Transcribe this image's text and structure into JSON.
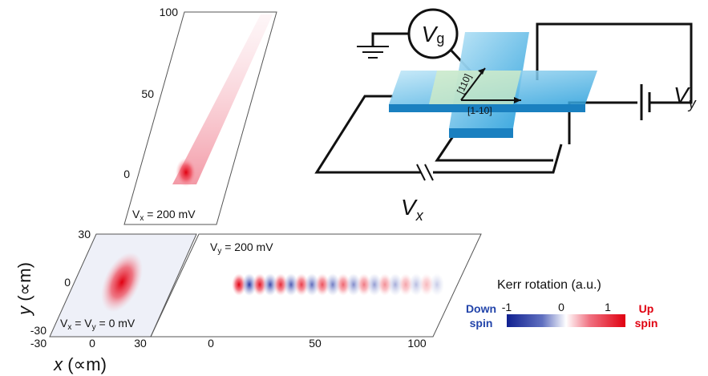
{
  "panels": {
    "top": {
      "ticks": [
        "100",
        "50",
        "0"
      ],
      "label": {
        "v": "V",
        "sub": "x",
        "rest": " = 200 mV"
      }
    },
    "left": {
      "yticks": [
        "30",
        "0",
        "-30"
      ],
      "xticks": [
        "-30",
        "0",
        "30"
      ],
      "label": {
        "v1": "V",
        "sub1": "x",
        "mid": " = V",
        "sub2": "y",
        "rest": " = 0 mV"
      },
      "ylabel": {
        "v": "y",
        "unit": " (∝m)"
      },
      "xlabel": {
        "v": "x",
        "unit": " (∝m)"
      }
    },
    "right": {
      "xticks": [
        "0",
        "50",
        "100"
      ],
      "label": {
        "v": "V",
        "sub": "y",
        "rest": " = 200 mV"
      }
    }
  },
  "legend": {
    "title": "Kerr rotation (a.u.)",
    "ticks": [
      "-1",
      "0",
      "1"
    ],
    "down": [
      "Down",
      "spin"
    ],
    "up": [
      "Up",
      "spin"
    ]
  },
  "circuit": {
    "gate": {
      "v": "V",
      "sub": "g"
    },
    "dir1": "[110]",
    "dir2": "[1-10]",
    "vy": {
      "v": "V",
      "sub": "y"
    },
    "vx": {
      "v": "V",
      "sub": "x"
    }
  }
}
